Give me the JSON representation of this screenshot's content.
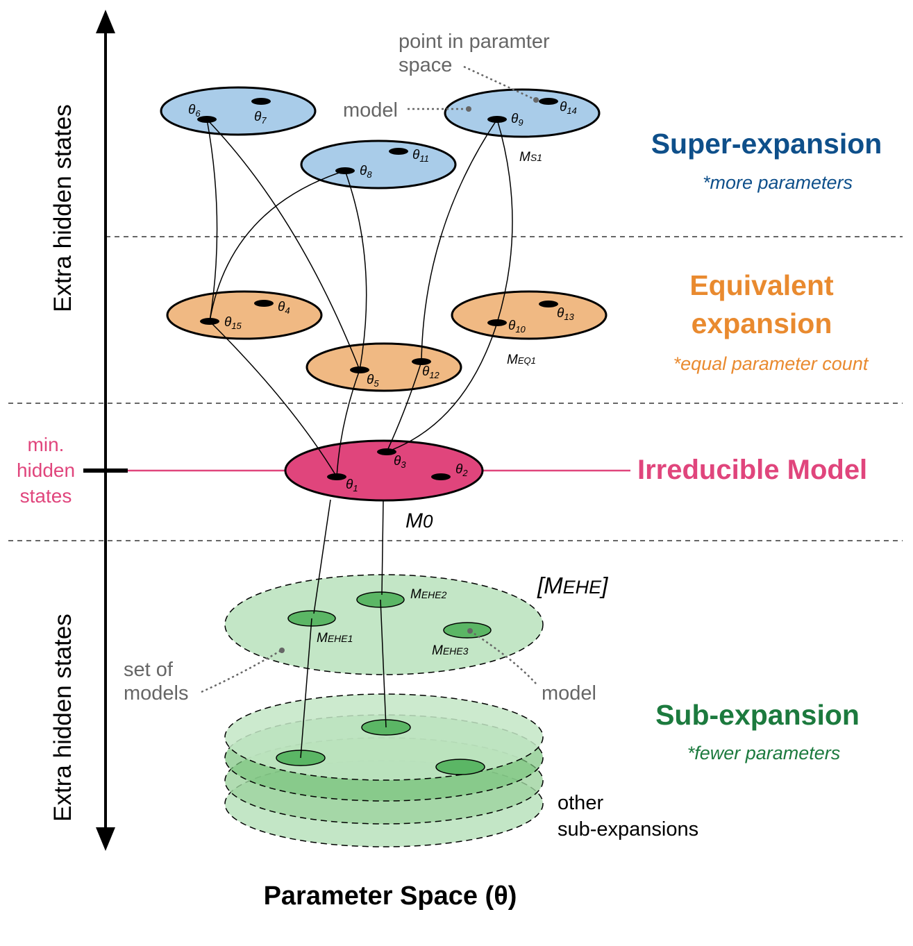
{
  "axis": {
    "upper_label": "Extra hidden states",
    "lower_label": "Extra hidden states",
    "x_label": "Parameter Space (θ)"
  },
  "tiers": {
    "super": {
      "title": "Super-expansion",
      "note": "*more parameters",
      "color": "#0e4f8a",
      "fill": "#a9cce9"
    },
    "equivalent": {
      "title_line1": "Equivalent",
      "title_line2": "expansion",
      "note": "*equal parameter count",
      "color": "#e98a2f",
      "fill": "#f0b983"
    },
    "irreducible": {
      "title": "Irreducible Model",
      "color": "#e0457c",
      "fill": "#e0457c",
      "min_label_1": "min.",
      "min_label_2": "hidden",
      "min_label_3": "states"
    },
    "sub": {
      "title": "Sub-expansion",
      "note": "*fewer parameters",
      "color": "#1c7a3e",
      "fill": "#c3e6c6",
      "inner_fill": "#5bb665"
    }
  },
  "annotations": {
    "point_line1": "point in paramter",
    "point_line2": "space",
    "model_top": "model",
    "set_line1": "set of",
    "set_line2": "models",
    "model_bottom": "model",
    "other_line1": "other",
    "other_line2": "sub-expansions"
  },
  "models": {
    "ms1": {
      "base": "M",
      "sub": "S1"
    },
    "meq1": {
      "base": "M",
      "sub": "EQ1"
    },
    "m0": {
      "base": "M",
      "sub": "0"
    },
    "mehe_set": {
      "open": "[",
      "base": "M",
      "sub": "EHE",
      "close": "]"
    },
    "mehe1": {
      "base": "M",
      "sub": "EHE1"
    },
    "mehe2": {
      "base": "M",
      "sub": "EHE2"
    },
    "mehe3": {
      "base": "M",
      "sub": "EHE3"
    }
  },
  "thetas": {
    "t1": {
      "sym": "θ",
      "sub": "1"
    },
    "t2": {
      "sym": "θ",
      "sub": "2"
    },
    "t3": {
      "sym": "θ",
      "sub": "3"
    },
    "t4": {
      "sym": "θ",
      "sub": "4"
    },
    "t5": {
      "sym": "θ",
      "sub": "5"
    },
    "t6": {
      "sym": "θ",
      "sub": "6"
    },
    "t7": {
      "sym": "θ",
      "sub": "7"
    },
    "t8": {
      "sym": "θ",
      "sub": "8"
    },
    "t9": {
      "sym": "θ",
      "sub": "9"
    },
    "t10": {
      "sym": "θ",
      "sub": "10"
    },
    "t11": {
      "sym": "θ",
      "sub": "11"
    },
    "t12": {
      "sym": "θ",
      "sub": "12"
    },
    "t13": {
      "sym": "θ",
      "sub": "13"
    },
    "t14": {
      "sym": "θ",
      "sub": "14"
    },
    "t15": {
      "sym": "θ",
      "sub": "15"
    }
  }
}
